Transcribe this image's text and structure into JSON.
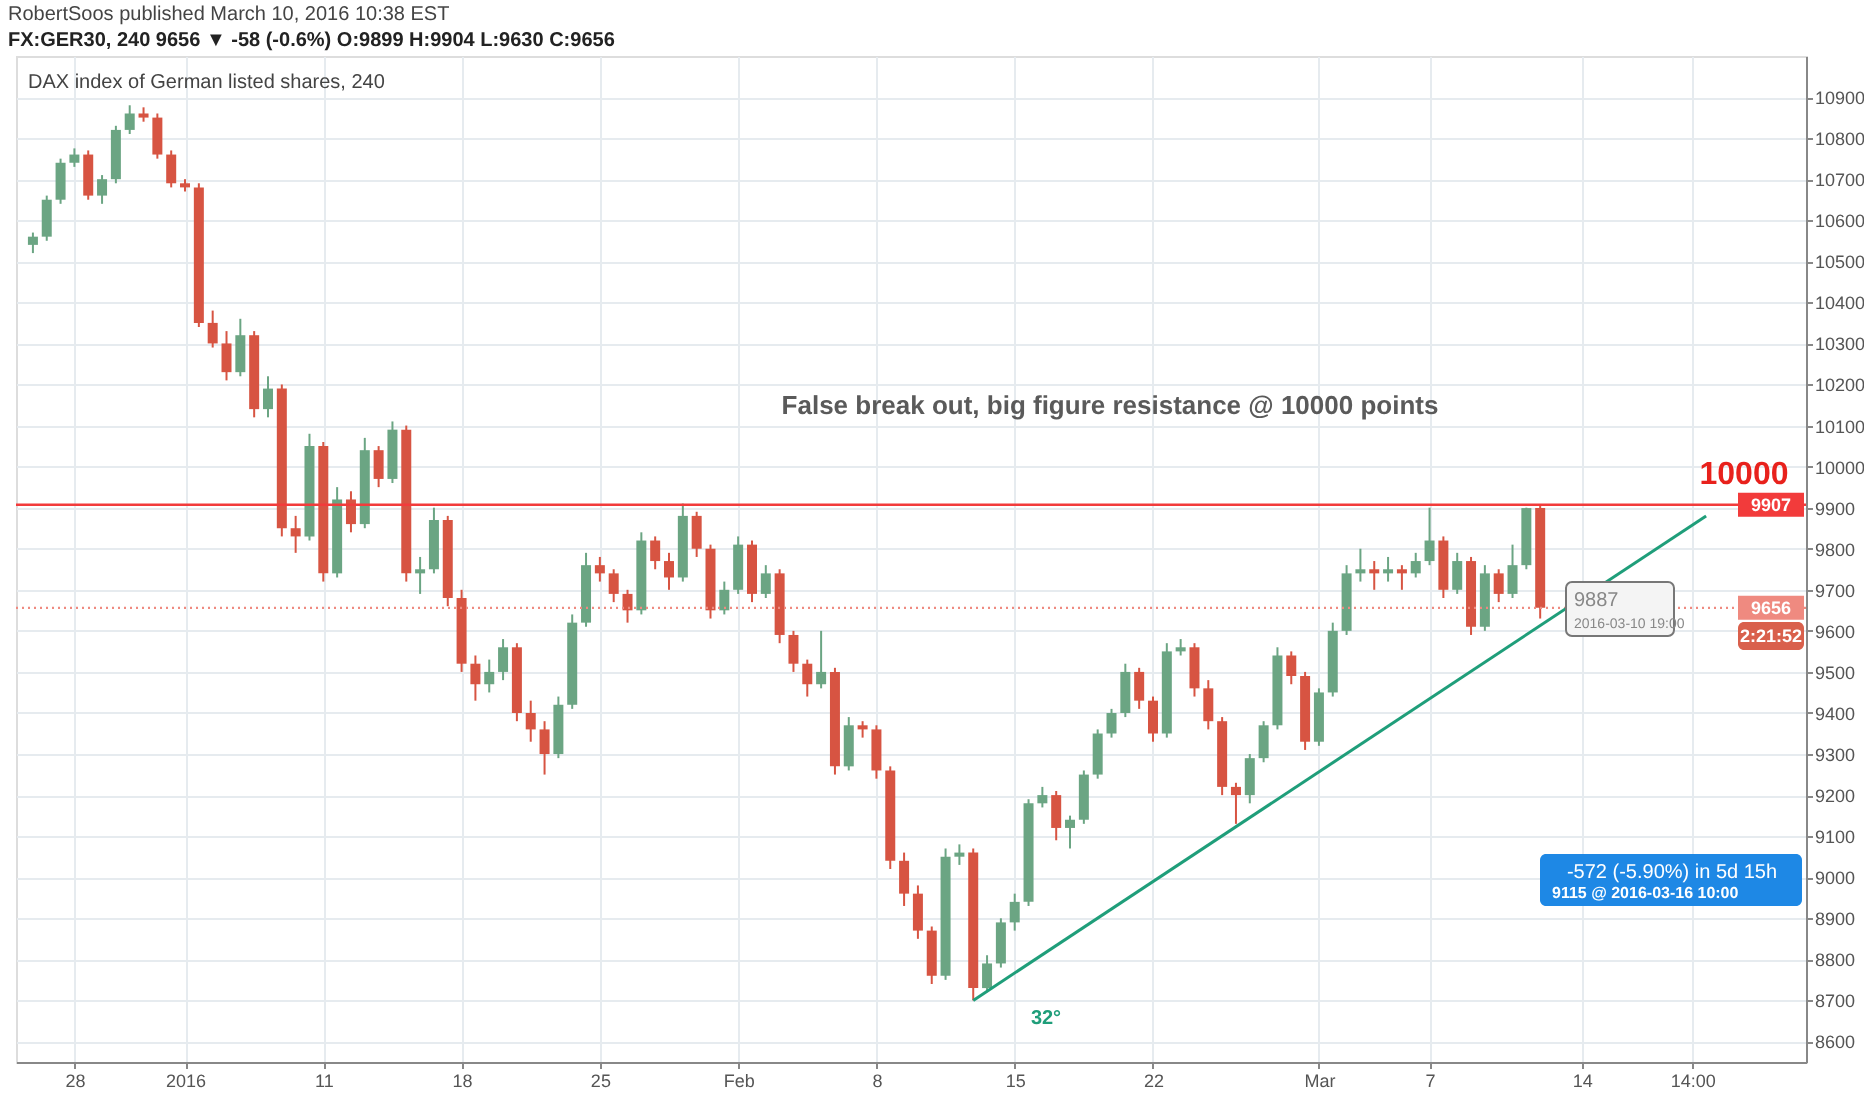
{
  "chart_data": {
    "type": "candlestick",
    "title": "FX:GER30, 240 9656 ▼ -58 (-0.6%) O:9899 H:9904 L:9630 C:9656",
    "subtitle": "DAX index of German listed shares, 240",
    "categories": [
      null,
      null,
      null,
      "28",
      null,
      null,
      null,
      null,
      null,
      null,
      null,
      "2016",
      null,
      null,
      null,
      null,
      null,
      null,
      null,
      null,
      null,
      "11",
      null,
      null,
      null,
      null,
      null,
      null,
      null,
      null,
      null,
      "18",
      null,
      null,
      null,
      null,
      null,
      null,
      null,
      null,
      null,
      "25",
      null,
      null,
      null,
      null,
      null,
      null,
      null,
      null,
      null,
      "Feb",
      null,
      null,
      null,
      null,
      null,
      null,
      null,
      null,
      null,
      "8",
      null,
      null,
      null,
      null,
      null,
      null,
      null,
      null,
      null,
      "15",
      null,
      null,
      null,
      null,
      null,
      null,
      null,
      null,
      null,
      "22",
      null,
      null,
      null,
      null,
      null,
      null,
      null,
      null,
      null,
      null,
      null,
      "Mar",
      null,
      null,
      null,
      null,
      null,
      null,
      null,
      "7",
      null,
      null,
      null,
      null,
      null,
      null,
      null,
      null,
      null,
      null,
      "14",
      null,
      null,
      null,
      null,
      null,
      null,
      null,
      "14:00",
      null,
      null,
      null,
      null,
      null,
      null,
      null
    ],
    "ohlc": [
      [
        10540,
        10570,
        10520,
        10560
      ],
      [
        10560,
        10660,
        10550,
        10650
      ],
      [
        10650,
        10750,
        10640,
        10740
      ],
      [
        10740,
        10775,
        10730,
        10760
      ],
      [
        10760,
        10770,
        10650,
        10660
      ],
      [
        10660,
        10710,
        10640,
        10700
      ],
      [
        10700,
        10830,
        10690,
        10820
      ],
      [
        10820,
        10880,
        10810,
        10860
      ],
      [
        10860,
        10875,
        10840,
        10850
      ],
      [
        10850,
        10860,
        10750,
        10760
      ],
      [
        10760,
        10770,
        10680,
        10690
      ],
      [
        10690,
        10700,
        10670,
        10680
      ],
      [
        10680,
        10690,
        10340,
        10350
      ],
      [
        10350,
        10380,
        10290,
        10300
      ],
      [
        10300,
        10330,
        10210,
        10230
      ],
      [
        10230,
        10360,
        10220,
        10320
      ],
      [
        10320,
        10330,
        10120,
        10140
      ],
      [
        10140,
        10220,
        10120,
        10190
      ],
      [
        10190,
        10200,
        9830,
        9850
      ],
      [
        9850,
        9880,
        9790,
        9830
      ],
      [
        9830,
        10080,
        9820,
        10050
      ],
      [
        10050,
        10060,
        9720,
        9740
      ],
      [
        9740,
        9950,
        9730,
        9920
      ],
      [
        9920,
        9940,
        9840,
        9860
      ],
      [
        9860,
        10070,
        9850,
        10040
      ],
      [
        10040,
        10050,
        9950,
        9970
      ],
      [
        9970,
        10110,
        9960,
        10090
      ],
      [
        10090,
        10100,
        9720,
        9740
      ],
      [
        9740,
        9780,
        9690,
        9750
      ],
      [
        9750,
        9900,
        9740,
        9870
      ],
      [
        9870,
        9880,
        9660,
        9680
      ],
      [
        9680,
        9700,
        9500,
        9520
      ],
      [
        9520,
        9540,
        9430,
        9470
      ],
      [
        9470,
        9530,
        9450,
        9500
      ],
      [
        9500,
        9580,
        9480,
        9560
      ],
      [
        9560,
        9570,
        9380,
        9400
      ],
      [
        9400,
        9430,
        9330,
        9360
      ],
      [
        9360,
        9380,
        9250,
        9300
      ],
      [
        9300,
        9440,
        9290,
        9420
      ],
      [
        9420,
        9640,
        9410,
        9620
      ],
      [
        9620,
        9790,
        9610,
        9760
      ],
      [
        9760,
        9780,
        9720,
        9740
      ],
      [
        9740,
        9750,
        9670,
        9690
      ],
      [
        9690,
        9700,
        9620,
        9650
      ],
      [
        9650,
        9840,
        9640,
        9820
      ],
      [
        9820,
        9830,
        9750,
        9770
      ],
      [
        9770,
        9790,
        9700,
        9730
      ],
      [
        9730,
        9910,
        9720,
        9880
      ],
      [
        9880,
        9890,
        9780,
        9800
      ],
      [
        9800,
        9810,
        9630,
        9650
      ],
      [
        9650,
        9720,
        9640,
        9700
      ],
      [
        9700,
        9830,
        9690,
        9810
      ],
      [
        9810,
        9820,
        9670,
        9690
      ],
      [
        9690,
        9760,
        9680,
        9740
      ],
      [
        9740,
        9750,
        9570,
        9590
      ],
      [
        9590,
        9600,
        9500,
        9520
      ],
      [
        9520,
        9530,
        9440,
        9470
      ],
      [
        9470,
        9600,
        9460,
        9500
      ],
      [
        9500,
        9510,
        9250,
        9270
      ],
      [
        9270,
        9390,
        9260,
        9370
      ],
      [
        9370,
        9380,
        9340,
        9360
      ],
      [
        9360,
        9370,
        9240,
        9260
      ],
      [
        9260,
        9270,
        9020,
        9040
      ],
      [
        9040,
        9060,
        8930,
        8960
      ],
      [
        8960,
        8980,
        8850,
        8870
      ],
      [
        8870,
        8880,
        8740,
        8760
      ],
      [
        8760,
        9070,
        8750,
        9050
      ],
      [
        9050,
        9080,
        9030,
        9060
      ],
      [
        9060,
        9070,
        8700,
        8730
      ],
      [
        8730,
        8810,
        8720,
        8790
      ],
      [
        8790,
        8900,
        8780,
        8890
      ],
      [
        8890,
        8960,
        8870,
        8940
      ],
      [
        8940,
        9190,
        8930,
        9180
      ],
      [
        9180,
        9220,
        9170,
        9200
      ],
      [
        9200,
        9210,
        9090,
        9120
      ],
      [
        9120,
        9150,
        9070,
        9140
      ],
      [
        9140,
        9260,
        9130,
        9250
      ],
      [
        9250,
        9360,
        9240,
        9350
      ],
      [
        9350,
        9410,
        9340,
        9400
      ],
      [
        9400,
        9520,
        9390,
        9500
      ],
      [
        9500,
        9510,
        9410,
        9430
      ],
      [
        9430,
        9440,
        9330,
        9350
      ],
      [
        9350,
        9570,
        9340,
        9550
      ],
      [
        9550,
        9580,
        9540,
        9560
      ],
      [
        9560,
        9570,
        9440,
        9460
      ],
      [
        9460,
        9480,
        9360,
        9380
      ],
      [
        9380,
        9390,
        9200,
        9220
      ],
      [
        9220,
        9230,
        9130,
        9200
      ],
      [
        9200,
        9300,
        9180,
        9290
      ],
      [
        9290,
        9380,
        9280,
        9370
      ],
      [
        9370,
        9560,
        9360,
        9540
      ],
      [
        9540,
        9550,
        9470,
        9490
      ],
      [
        9490,
        9500,
        9310,
        9330
      ],
      [
        9330,
        9460,
        9320,
        9450
      ],
      [
        9450,
        9620,
        9440,
        9600
      ],
      [
        9600,
        9760,
        9590,
        9740
      ],
      [
        9740,
        9800,
        9720,
        9750
      ],
      [
        9750,
        9770,
        9700,
        9740
      ],
      [
        9740,
        9780,
        9720,
        9750
      ],
      [
        9750,
        9760,
        9700,
        9740
      ],
      [
        9740,
        9790,
        9730,
        9770
      ],
      [
        9770,
        9900,
        9760,
        9820
      ],
      [
        9820,
        9830,
        9680,
        9700
      ],
      [
        9700,
        9790,
        9690,
        9770
      ],
      [
        9770,
        9780,
        9590,
        9610
      ],
      [
        9610,
        9760,
        9600,
        9740
      ],
      [
        9740,
        9750,
        9670,
        9690
      ],
      [
        9690,
        9810,
        9680,
        9760
      ],
      [
        9760,
        9900,
        9750,
        9899
      ],
      [
        9899,
        9904,
        9630,
        9656
      ],
      null,
      null,
      null,
      null,
      null,
      null,
      null,
      null,
      null,
      null,
      null,
      null,
      null,
      null,
      null,
      null,
      null,
      null
    ],
    "colors": [
      "#6ba583",
      "#6ba583",
      "#6ba583",
      "#6ba583",
      "#d75442",
      "#6ba583",
      "#6ba583",
      "#6ba583",
      "#d75442",
      "#d75442",
      "#d75442",
      "#d75442",
      "#d75442",
      "#d75442",
      "#d75442",
      "#6ba583",
      "#d75442",
      "#6ba583",
      "#d75442",
      "#d75442",
      "#6ba583",
      "#d75442",
      "#6ba583",
      "#d75442",
      "#6ba583",
      "#d75442",
      "#6ba583",
      "#d75442",
      "#6ba583",
      "#6ba583",
      "#d75442",
      "#d75442",
      "#d75442",
      "#6ba583",
      "#6ba583",
      "#d75442",
      "#d75442",
      "#d75442",
      "#6ba583",
      "#6ba583",
      "#6ba583",
      "#d75442",
      "#d75442",
      "#d75442",
      "#6ba583",
      "#d75442",
      "#d75442",
      "#6ba583",
      "#d75442",
      "#d75442",
      "#6ba583",
      "#6ba583",
      "#d75442",
      "#6ba583",
      "#d75442",
      "#d75442",
      "#d75442",
      "#6ba583",
      "#d75442",
      "#6ba583",
      "#d75442",
      "#d75442",
      "#d75442",
      "#d75442",
      "#d75442",
      "#d75442",
      "#6ba583",
      "#6ba583",
      "#d75442",
      "#6ba583",
      "#6ba583",
      "#6ba583",
      "#6ba583",
      "#6ba583",
      "#d75442",
      "#6ba583",
      "#6ba583",
      "#6ba583",
      "#6ba583",
      "#6ba583",
      "#d75442",
      "#d75442",
      "#6ba583",
      "#6ba583",
      "#d75442",
      "#d75442",
      "#d75442",
      "#d75442",
      "#6ba583",
      "#6ba583",
      "#6ba583",
      "#d75442",
      "#d75442",
      "#6ba583",
      "#6ba583",
      "#6ba583",
      "#6ba583",
      "#d75442",
      "#6ba583",
      "#d75442",
      "#6ba583",
      "#6ba583",
      "#d75442",
      "#6ba583",
      "#d75442",
      "#6ba583",
      "#d75442",
      "#6ba583",
      "#6ba583",
      "#d75442",
      null,
      null,
      null,
      null,
      null,
      null,
      null,
      null,
      null,
      null,
      null,
      null,
      null,
      null,
      null,
      null,
      null,
      null
    ],
    "series": [
      {
        "type": "line",
        "color": "#1f9e7a",
        "values": [
          null,
          null,
          null,
          null,
          null,
          null,
          null,
          null,
          null,
          null,
          null,
          null,
          null,
          null,
          null,
          null,
          null,
          null,
          null,
          null,
          null,
          null,
          null,
          null,
          null,
          null,
          null,
          null,
          null,
          null,
          null,
          null,
          null,
          null,
          null,
          null,
          null,
          null,
          null,
          null,
          null,
          null,
          null,
          null,
          null,
          null,
          null,
          null,
          null,
          null,
          null,
          null,
          null,
          null,
          null,
          null,
          null,
          null,
          null,
          null,
          null,
          null,
          null,
          null,
          null,
          null,
          null,
          null,
          8700,
          null,
          null,
          null,
          null,
          null,
          null,
          null,
          null,
          null,
          null,
          null,
          null,
          null,
          null,
          null,
          null,
          null,
          null,
          null,
          null,
          null,
          null,
          null,
          null,
          null,
          null,
          null,
          null,
          null,
          null,
          null,
          null,
          null,
          null,
          null,
          null,
          null,
          null,
          null,
          null,
          null,
          null,
          null,
          null,
          null,
          null,
          null,
          null,
          null,
          null,
          null,
          null,
          9880,
          null,
          null,
          null,
          null,
          null,
          null
        ]
      }
    ],
    "ylim": [
      8550,
      11000
    ],
    "yticks": [
      8600,
      8700,
      8800,
      8900,
      9000,
      9100,
      9200,
      9300,
      9400,
      9500,
      9600,
      9700,
      9800,
      9900,
      10000,
      10100,
      10200,
      10300,
      10400,
      10500,
      10600,
      10700,
      10800,
      10900
    ],
    "grid": true,
    "ref_lines": [
      {
        "axis": "y",
        "value": 9907,
        "label": "9907",
        "color": "#f23b3b",
        "line_style": "solid"
      },
      {
        "axis": "y",
        "value": 9656,
        "label": "9656",
        "color": "#ef8a80",
        "line_style": "dotted"
      }
    ],
    "annotations": [
      "RobertSoos published March 10, 2016 10:38 EST",
      "False break out, big figure resistance @ 10000 points",
      "10000",
      "9887",
      "2016-03-10 19:00",
      "32°",
      "-572 (-5.90%) in 5d 15h",
      "9115 @ 2016-03-16  10:00",
      "2:21:52"
    ]
  }
}
